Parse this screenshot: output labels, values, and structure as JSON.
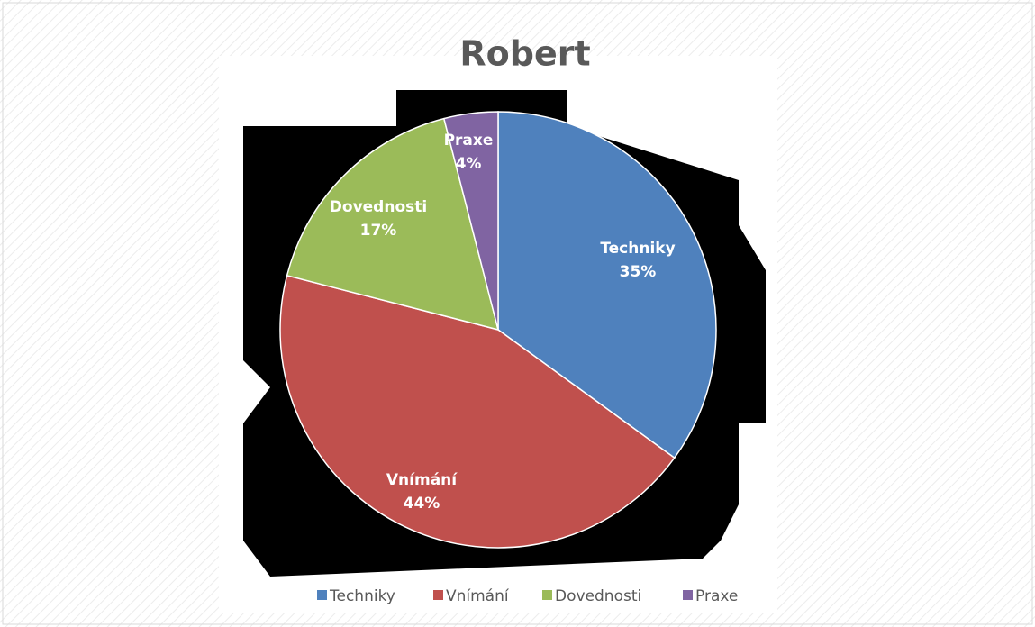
{
  "chart_data": {
    "type": "pie",
    "title": "Robert",
    "categories": [
      "Techniky",
      "Vnímání",
      "Dovednosti",
      "Praxe"
    ],
    "values": [
      35,
      44,
      17,
      4
    ],
    "value_labels": [
      "35%",
      "44%",
      "17%",
      "4%"
    ],
    "colors": [
      "#4f81bd",
      "#c0504d",
      "#9bbb59",
      "#8064a2"
    ],
    "legend": "bottom"
  }
}
